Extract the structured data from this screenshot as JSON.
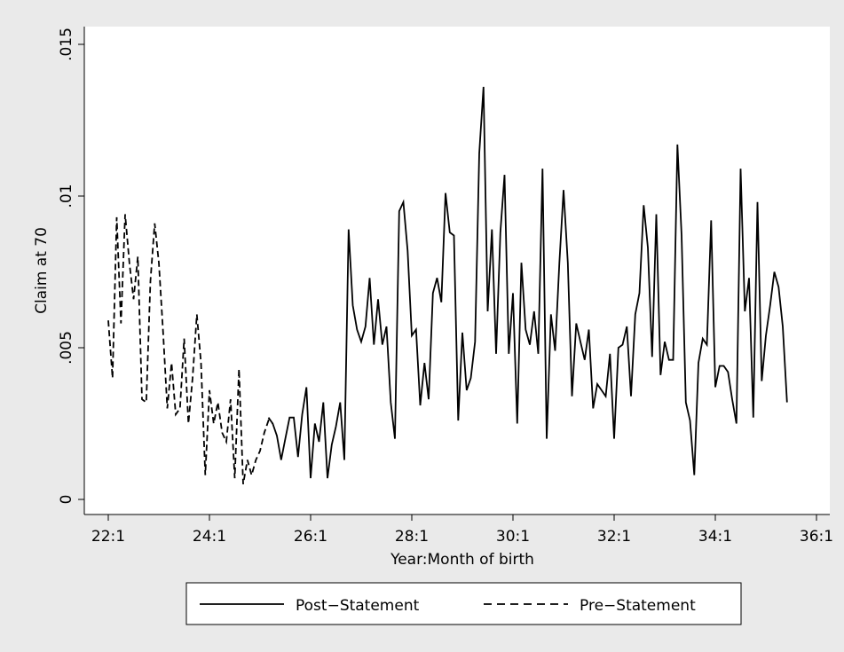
{
  "chart_data": {
    "type": "line",
    "xlabel": "Year:Month of birth",
    "ylabel": "Claim at 70",
    "xlim": [
      0,
      168
    ],
    "xticks": [
      {
        "value": 0,
        "label": "22:1"
      },
      {
        "value": 24,
        "label": "24:1"
      },
      {
        "value": 48,
        "label": "26:1"
      },
      {
        "value": 72,
        "label": "28:1"
      },
      {
        "value": 96,
        "label": "30:1"
      },
      {
        "value": 120,
        "label": "32:1"
      },
      {
        "value": 144,
        "label": "34:1"
      },
      {
        "value": 168,
        "label": "36:1"
      }
    ],
    "ylim": [
      0,
      0.015
    ],
    "yticks": [
      0,
      {
        "value": 0.005,
        "label": ".005"
      },
      {
        "value": 0.01,
        "label": ".01"
      },
      {
        "value": 0.015,
        "label": ".015"
      }
    ],
    "legend": "bottom",
    "series": [
      {
        "name": "Post−Statement",
        "color": "#000000",
        "dash": "solid",
        "x": [
          38,
          39,
          40,
          41,
          42,
          43,
          44,
          45,
          46,
          47,
          48,
          49,
          50,
          51,
          52,
          53,
          54,
          55,
          56,
          57,
          58,
          59,
          60,
          61,
          62,
          63,
          64,
          65,
          66,
          67,
          68,
          69,
          70,
          71,
          72,
          73,
          74,
          75,
          76,
          77,
          78,
          79,
          80,
          81,
          82,
          83,
          84,
          85,
          86,
          87,
          88,
          89,
          90,
          91,
          92,
          93,
          94,
          95,
          96,
          97,
          98,
          99,
          100,
          101,
          102,
          103,
          104,
          105,
          106,
          107,
          108,
          109,
          110,
          111,
          112,
          113,
          114,
          115,
          116,
          117,
          118,
          119,
          120,
          121,
          122,
          123,
          124,
          125,
          126,
          127,
          128,
          129,
          130,
          131,
          132,
          133,
          134,
          135,
          136,
          137,
          138,
          139,
          140,
          141,
          142,
          143,
          144,
          145,
          146,
          147,
          148,
          149,
          150,
          151,
          152,
          153,
          154,
          155,
          156,
          157,
          158,
          159,
          160,
          161
        ],
        "values": [
          0.0027,
          0.0025,
          0.0021,
          0.0013,
          0.002,
          0.0027,
          0.0027,
          0.0014,
          0.0028,
          0.0037,
          0.0007,
          0.0025,
          0.0019,
          0.0032,
          0.0007,
          0.0018,
          0.0024,
          0.0032,
          0.0013,
          0.0089,
          0.0064,
          0.0056,
          0.0052,
          0.0057,
          0.0073,
          0.0051,
          0.0066,
          0.0051,
          0.0057,
          0.0032,
          0.002,
          0.0095,
          0.0098,
          0.0082,
          0.0054,
          0.0056,
          0.0031,
          0.0045,
          0.0033,
          0.0068,
          0.0073,
          0.0065,
          0.0101,
          0.0088,
          0.0087,
          0.0026,
          0.0055,
          0.0036,
          0.004,
          0.0052,
          0.0114,
          0.0136,
          0.0062,
          0.0089,
          0.0048,
          0.0088,
          0.0107,
          0.0048,
          0.0068,
          0.0025,
          0.0078,
          0.0056,
          0.0051,
          0.0062,
          0.0048,
          0.0109,
          0.002,
          0.0061,
          0.0049,
          0.0078,
          0.0102,
          0.0078,
          0.0034,
          0.0058,
          0.0052,
          0.0046,
          0.0056,
          0.003,
          0.0038,
          0.0036,
          0.0034,
          0.0048,
          0.002,
          0.005,
          0.0051,
          0.0057,
          0.0034,
          0.0061,
          0.0068,
          0.0097,
          0.0083,
          0.0047,
          0.0094,
          0.0041,
          0.0052,
          0.0046,
          0.0046,
          0.0117,
          0.0087,
          0.0032,
          0.0026,
          0.0008,
          0.0045,
          0.0053,
          0.0051,
          0.0092,
          0.0037,
          0.0044,
          0.0044,
          0.0042,
          0.0033,
          0.0025,
          0.0109,
          0.0062,
          0.0073,
          0.0027,
          0.0098,
          0.0039,
          0.0054,
          0.0064,
          0.0075,
          0.007,
          0.0057,
          0.0032
        ]
      },
      {
        "name": "Pre−Statement",
        "color": "#000000",
        "dash": "dashed",
        "x": [
          0,
          1,
          2,
          3,
          4,
          5,
          6,
          7,
          8,
          9,
          10,
          11,
          12,
          13,
          14,
          15,
          16,
          17,
          18,
          19,
          20,
          21,
          22,
          23,
          24,
          25,
          26,
          27,
          28,
          29,
          30,
          31,
          32,
          33,
          34,
          35,
          36,
          37,
          38,
          39
        ],
        "values": [
          0.0059,
          0.004,
          0.0093,
          0.0058,
          0.0094,
          0.0078,
          0.0066,
          0.008,
          0.0033,
          0.0032,
          0.0072,
          0.0091,
          0.0078,
          0.0055,
          0.003,
          0.0045,
          0.0028,
          0.003,
          0.0053,
          0.0025,
          0.004,
          0.0061,
          0.0045,
          0.0008,
          0.0036,
          0.0025,
          0.0032,
          0.0022,
          0.0019,
          0.0033,
          0.0007,
          0.0043,
          0.0005,
          0.0013,
          0.0008,
          0.0013,
          0.0016,
          0.0022,
          0.0026,
          0.0025
        ]
      }
    ]
  }
}
